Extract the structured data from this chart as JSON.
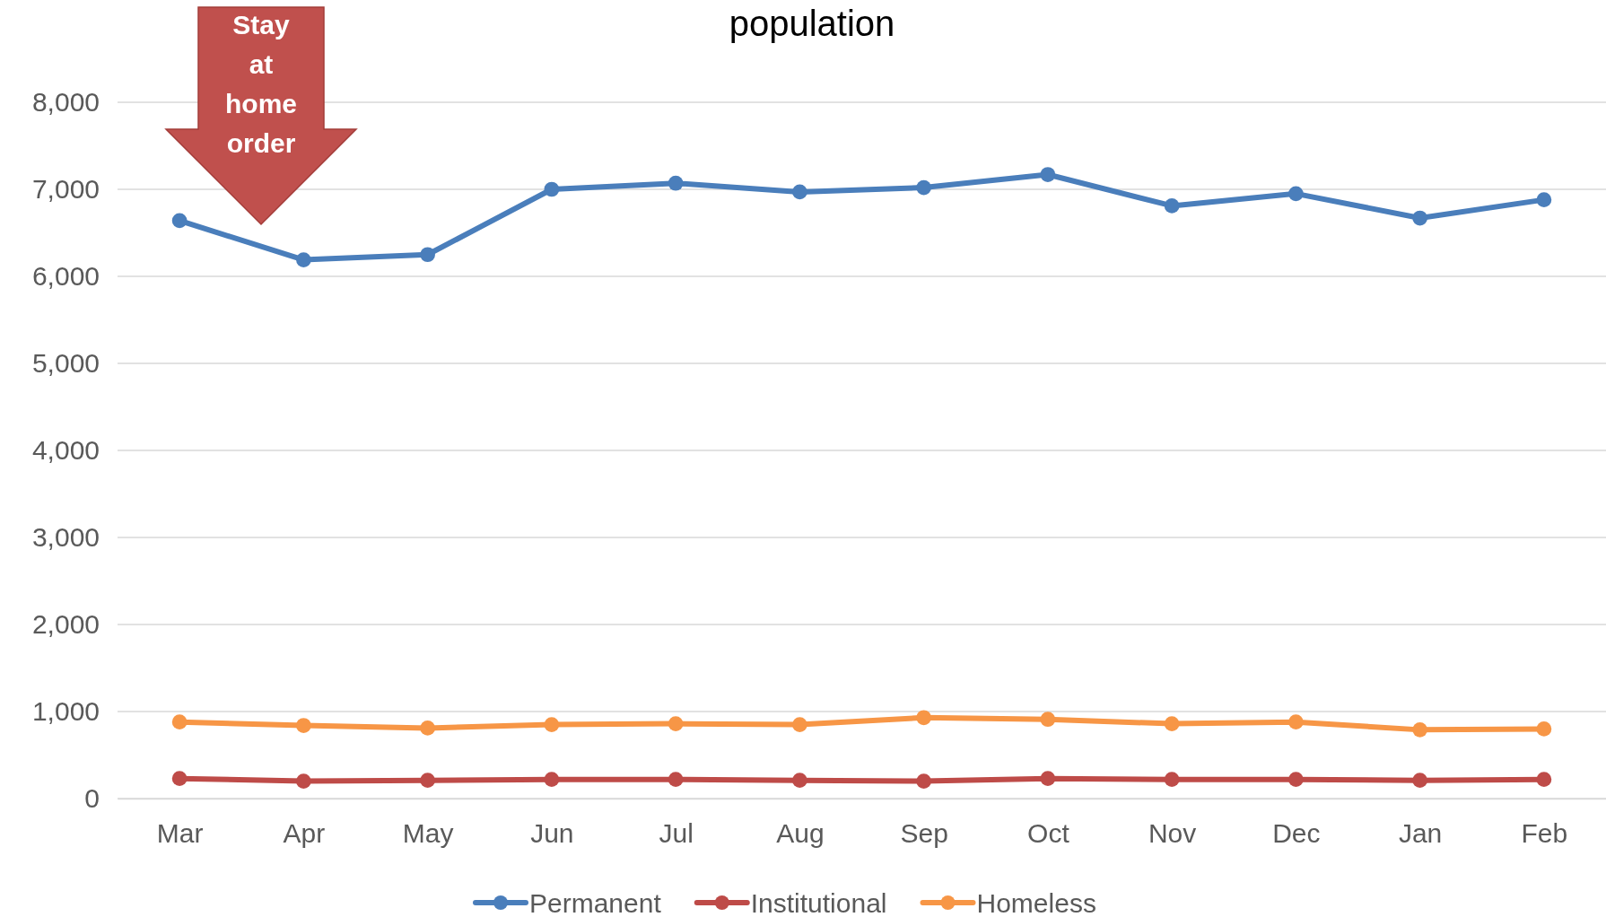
{
  "chart_data": {
    "type": "line",
    "title": "population",
    "categories": [
      "Mar",
      "Apr",
      "May",
      "Jun",
      "Jul",
      "Aug",
      "Sep",
      "Oct",
      "Nov",
      "Dec",
      "Jan",
      "Feb"
    ],
    "series": [
      {
        "name": "Permanent",
        "color": "#4a7ebb",
        "values": [
          6640,
          6190,
          6250,
          7000,
          7070,
          6970,
          7020,
          7170,
          6810,
          6950,
          6670,
          6880
        ]
      },
      {
        "name": "Institutional",
        "color": "#be4b48",
        "values": [
          230,
          200,
          210,
          220,
          220,
          210,
          200,
          230,
          220,
          220,
          210,
          220
        ]
      },
      {
        "name": "Homeless",
        "color": "#f79646",
        "values": [
          880,
          840,
          810,
          850,
          860,
          850,
          930,
          910,
          860,
          880,
          790,
          800
        ]
      }
    ],
    "ylim": [
      0,
      8000
    ],
    "yticks": [
      {
        "value": 0,
        "label": "0"
      },
      {
        "value": 1000,
        "label": "1,000"
      },
      {
        "value": 2000,
        "label": "2,000"
      },
      {
        "value": 3000,
        "label": "3,000"
      },
      {
        "value": 4000,
        "label": "4,000"
      },
      {
        "value": 5000,
        "label": "5,000"
      },
      {
        "value": 6000,
        "label": "6,000"
      },
      {
        "value": 7000,
        "label": "7,000"
      },
      {
        "value": 8000,
        "label": "8,000"
      }
    ],
    "grid": "y",
    "legend": "bottom",
    "marker": "circle",
    "line_style": "solid",
    "annotations": [
      "Stay at home order"
    ]
  }
}
